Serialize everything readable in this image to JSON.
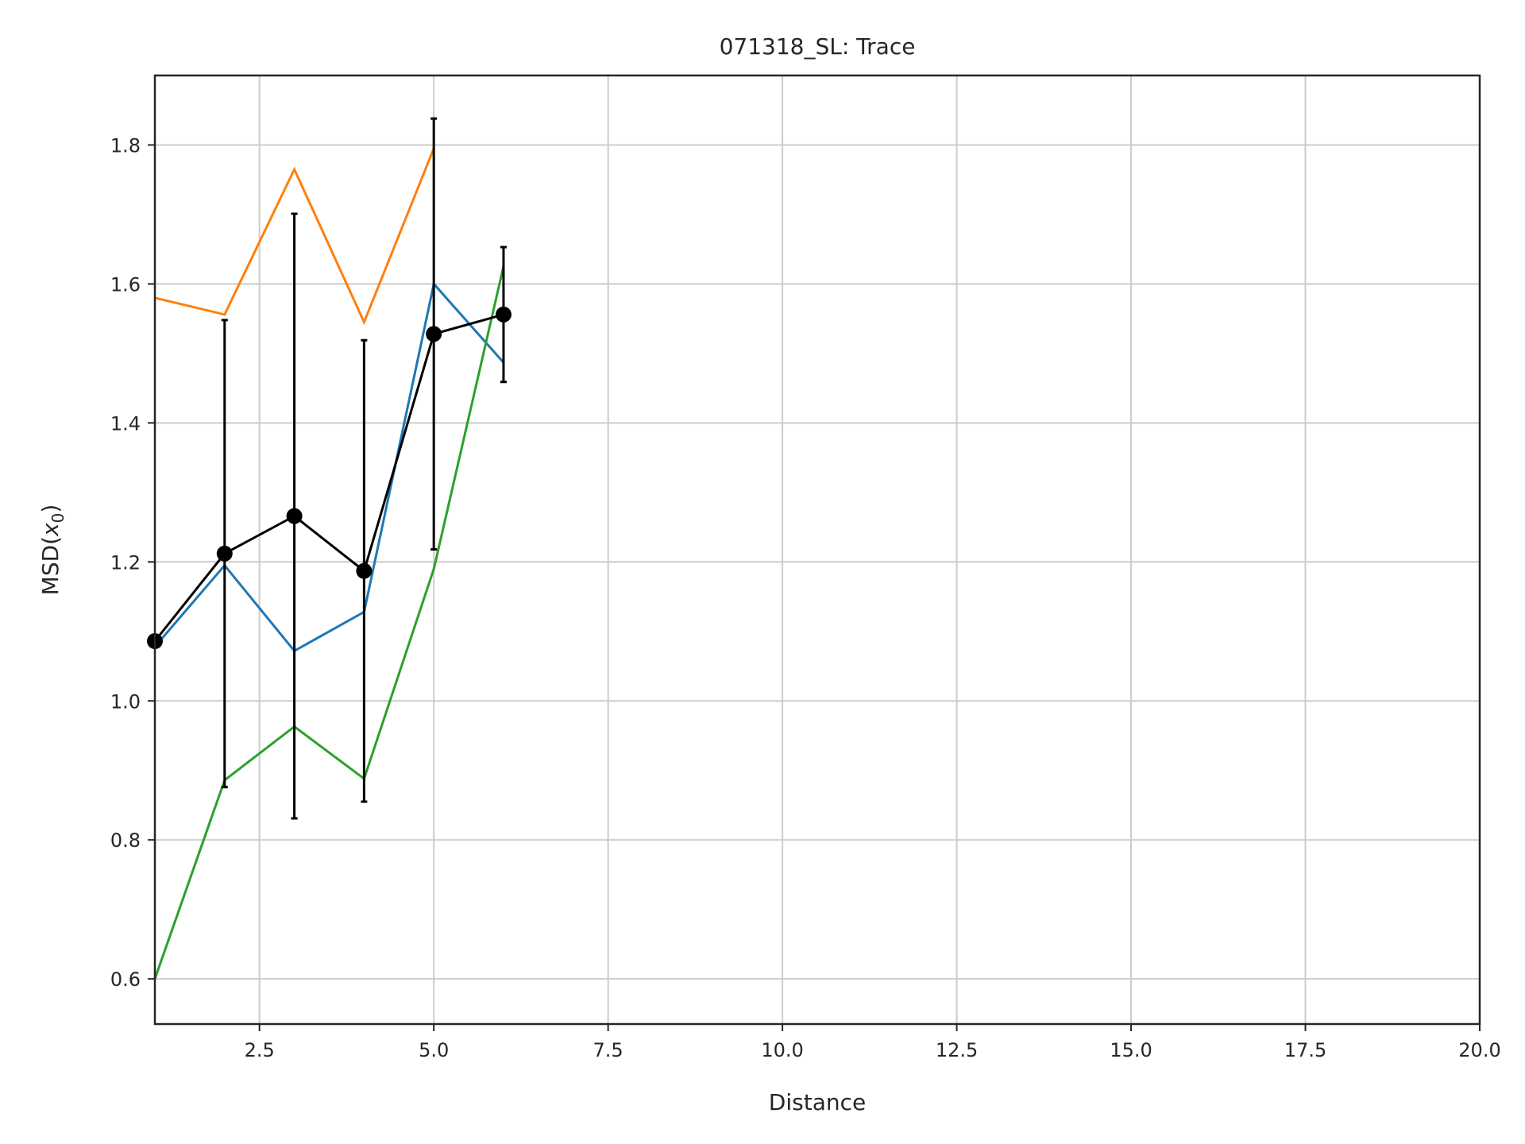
{
  "chart_data": {
    "type": "line",
    "title": "071318_SL: Trace",
    "xlabel": "Distance",
    "ylabel_main": "MSD(",
    "ylabel_var": "x",
    "ylabel_sub": "0",
    "ylabel_close": ")",
    "xlim": [
      1,
      20
    ],
    "ylim": [
      0.535,
      1.9
    ],
    "xticks": [
      2.5,
      5.0,
      7.5,
      10.0,
      12.5,
      15.0,
      17.5,
      20.0
    ],
    "xtick_labels": [
      "2.5",
      "5.0",
      "7.5",
      "10.0",
      "12.5",
      "15.0",
      "17.5",
      "20.0"
    ],
    "yticks": [
      0.6,
      0.8,
      1.0,
      1.2,
      1.4,
      1.6,
      1.8
    ],
    "ytick_labels": [
      "0.6",
      "0.8",
      "1.0",
      "1.2",
      "1.4",
      "1.6",
      "1.8"
    ],
    "grid": true,
    "series": [
      {
        "color": "#1f77b4",
        "x": [
          1,
          2,
          3,
          4,
          5,
          6
        ],
        "y": [
          1.078,
          1.195,
          1.072,
          1.128,
          1.6,
          1.487
        ]
      },
      {
        "color": "#ff7f0e",
        "x": [
          1,
          2,
          3,
          4,
          5
        ],
        "y": [
          1.58,
          1.556,
          1.765,
          1.545,
          1.795
        ]
      },
      {
        "color": "#2ca02c",
        "x": [
          1,
          2,
          3,
          4,
          5,
          6
        ],
        "y": [
          0.6,
          0.886,
          0.963,
          0.888,
          1.19,
          1.625
        ]
      }
    ],
    "mean_series": {
      "color": "#000000",
      "x": [
        1,
        2,
        3,
        4,
        5,
        6
      ],
      "y": [
        1.086,
        1.212,
        1.266,
        1.187,
        1.528,
        1.556
      ],
      "yerr": [
        0,
        0.336,
        0.435,
        0.332,
        0.31,
        0.097
      ]
    }
  }
}
